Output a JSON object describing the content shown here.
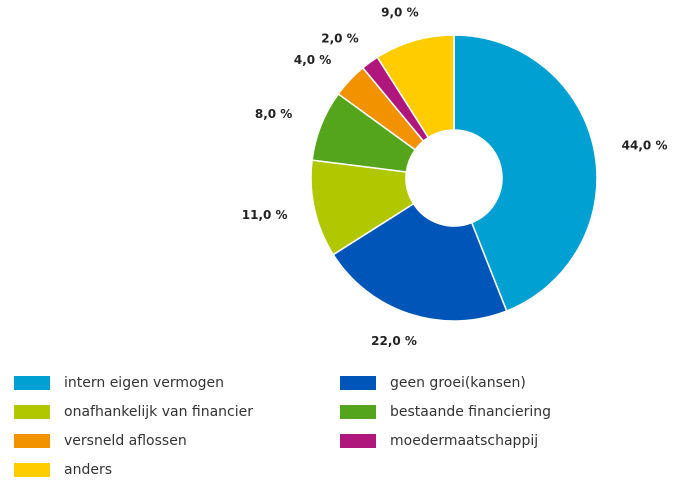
{
  "chart_data": {
    "type": "donut",
    "categories": [
      "intern eigen vermogen",
      "geen groei(kansen)",
      "onafhankelijk van financier",
      "bestaande financiering",
      "versneld aflossen",
      "moedermaatschappij",
      "anders"
    ],
    "values": [
      44,
      22,
      11,
      8,
      4,
      2,
      9
    ],
    "value_labels": [
      "44,0 %",
      "22,0 %",
      "11,0 %",
      "8,0 %",
      "4,0 %",
      "2,0 %",
      "9,0 %"
    ],
    "colors": [
      "#00a0d2",
      "#0055b8",
      "#b1c800",
      "#55a51c",
      "#f39200",
      "#b0177c",
      "#ffcc00"
    ]
  }
}
